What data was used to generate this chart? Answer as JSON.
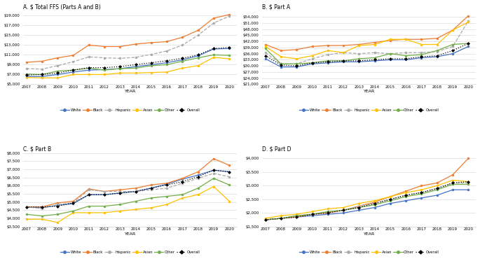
{
  "years": [
    2007,
    2008,
    2009,
    2010,
    2011,
    2012,
    2013,
    2014,
    2015,
    2016,
    2017,
    2018,
    2019,
    2020
  ],
  "panel_A": {
    "title": "A. $ Total FFS (Parts A and B)",
    "ylim": [
      5000,
      20000
    ],
    "yticks": [
      5000,
      7000,
      9000,
      11000,
      13000,
      15000,
      17000,
      19000
    ],
    "White": [
      6600,
      6600,
      7000,
      7500,
      7900,
      8000,
      8200,
      8600,
      9000,
      9400,
      10000,
      10800,
      12200,
      12300
    ],
    "Black": [
      9500,
      9700,
      10400,
      10900,
      13000,
      12700,
      12700,
      13200,
      13500,
      13700,
      14600,
      16000,
      18500,
      19200
    ],
    "Hispanic": [
      8200,
      8100,
      8800,
      9600,
      10600,
      10400,
      10300,
      10500,
      11100,
      11800,
      13000,
      15000,
      17500,
      18900
    ],
    "Asian": [
      6400,
      6300,
      6300,
      7000,
      7000,
      7000,
      7300,
      7300,
      7400,
      7500,
      8300,
      8800,
      10500,
      10200
    ],
    "Other": [
      7100,
      7000,
      7700,
      7900,
      8300,
      7900,
      8200,
      8300,
      8800,
      9000,
      9700,
      10400,
      11000,
      10900
    ],
    "Overall": [
      6900,
      7000,
      7300,
      7900,
      8400,
      8400,
      8600,
      9000,
      9400,
      9800,
      10300,
      11000,
      12300,
      12500
    ]
  },
  "panel_B": {
    "title": "B. $ Part A",
    "ylim": [
      21000,
      57000
    ],
    "yticks": [
      21000,
      24000,
      27000,
      30000,
      33000,
      36000,
      39000,
      42000,
      45000,
      48000,
      51000,
      54000
    ],
    "White": [
      33500,
      29500,
      29500,
      31000,
      31500,
      32000,
      32000,
      32500,
      33000,
      33000,
      34000,
      34500,
      36000,
      39500
    ],
    "Black": [
      40500,
      37500,
      38000,
      39500,
      40000,
      40000,
      40500,
      41500,
      42500,
      43000,
      43000,
      43500,
      47500,
      54500
    ],
    "Hispanic": [
      36500,
      31000,
      31000,
      33500,
      35500,
      36500,
      36000,
      36500,
      36000,
      36500,
      36500,
      37000,
      39500,
      52000
    ],
    "Asian": [
      39500,
      34500,
      33500,
      35000,
      37500,
      36500,
      40000,
      40500,
      43000,
      43000,
      40500,
      40500,
      47500,
      51500
    ],
    "Other": [
      38500,
      31000,
      31000,
      31500,
      32500,
      32500,
      33500,
      34000,
      36000,
      35000,
      35500,
      37500,
      40500,
      41000
    ],
    "Overall": [
      35000,
      30500,
      30000,
      31500,
      32000,
      32500,
      32500,
      33000,
      33500,
      33500,
      34500,
      35000,
      37500,
      41000
    ]
  },
  "panel_C": {
    "title": "C. $ Part B",
    "ylim": [
      3500,
      8000
    ],
    "yticks": [
      3500,
      4000,
      4500,
      5000,
      5500,
      6000,
      6500,
      7000,
      7500,
      8000
    ],
    "White": [
      4700,
      4650,
      4800,
      4900,
      5450,
      5450,
      5550,
      5650,
      5850,
      6100,
      6400,
      6650,
      6950,
      6850
    ],
    "Black": [
      4700,
      4700,
      4950,
      5050,
      5800,
      5650,
      5750,
      5850,
      6050,
      6150,
      6450,
      6850,
      7650,
      7250
    ],
    "Hispanic": [
      4700,
      4600,
      4850,
      4950,
      5750,
      5650,
      5650,
      5650,
      5750,
      5850,
      6150,
      6450,
      6750,
      6550
    ],
    "Asian": [
      3950,
      3950,
      3750,
      4350,
      4350,
      4350,
      4450,
      4550,
      4650,
      4850,
      5250,
      5450,
      5950,
      5050
    ],
    "Other": [
      4250,
      4150,
      4250,
      4450,
      4750,
      4750,
      4850,
      5050,
      5250,
      5350,
      5450,
      5850,
      6450,
      6050
    ],
    "Overall": [
      4700,
      4700,
      4750,
      4950,
      5450,
      5450,
      5550,
      5650,
      5850,
      6050,
      6250,
      6550,
      6950,
      6850
    ]
  },
  "panel_D": {
    "title": "D. $ Part D",
    "ylim": [
      1500,
      4200
    ],
    "yticks": [
      1500,
      2000,
      2500,
      3000,
      3500,
      4000
    ],
    "White": [
      1750,
      1800,
      1850,
      1900,
      1950,
      2000,
      2100,
      2200,
      2350,
      2450,
      2550,
      2650,
      2850,
      2850
    ],
    "Black": [
      1750,
      1800,
      1850,
      1950,
      2000,
      2100,
      2250,
      2400,
      2600,
      2800,
      3000,
      3100,
      3400,
      4000
    ],
    "Hispanic": [
      1750,
      1800,
      1900,
      1950,
      2050,
      2100,
      2250,
      2350,
      2500,
      2650,
      2750,
      2900,
      3100,
      3100
    ],
    "Asian": [
      1800,
      1900,
      1950,
      2050,
      2150,
      2200,
      2350,
      2450,
      2600,
      2750,
      2850,
      3000,
      3200,
      3150
    ],
    "Other": [
      1750,
      1800,
      1900,
      1950,
      2050,
      2100,
      2200,
      2300,
      2450,
      2600,
      2700,
      2850,
      3050,
      3050
    ],
    "Overall": [
      1750,
      1800,
      1850,
      1950,
      2000,
      2100,
      2200,
      2350,
      2500,
      2650,
      2750,
      2900,
      3100,
      3150
    ]
  },
  "series_colors": {
    "White": "#4472C4",
    "Black": "#ED7D31",
    "Hispanic": "#A9A9A9",
    "Asian": "#FFC000",
    "Other": "#70AD47",
    "Overall": "#000000"
  },
  "series_markers": {
    "White": "o",
    "Black": "o",
    "Hispanic": "o",
    "Asian": "o",
    "Other": "o",
    "Overall": "D"
  },
  "series_order": [
    "White",
    "Black",
    "Hispanic",
    "Asian",
    "Other",
    "Overall"
  ]
}
